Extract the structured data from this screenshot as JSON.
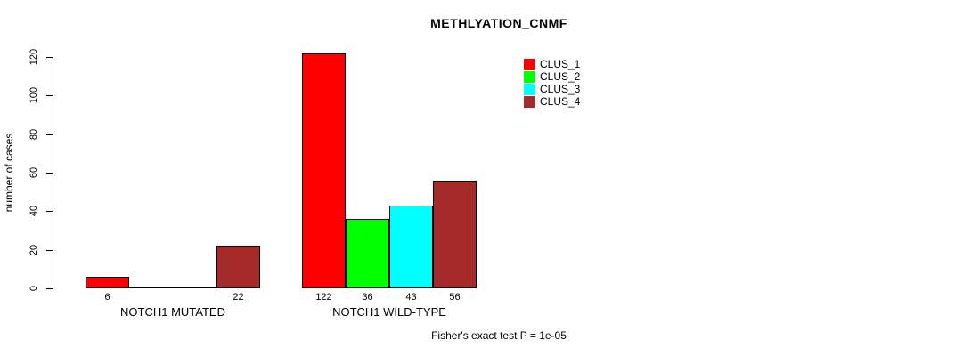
{
  "chart_data": {
    "type": "bar",
    "title": "METHLYATION_CNMF",
    "ylabel": "number of cases",
    "xlabel": "",
    "groups": [
      "NOTCH1 MUTATED",
      "NOTCH1 WILD-TYPE"
    ],
    "series": [
      {
        "name": "CLUS_1",
        "color": "#ff0000",
        "values": [
          6,
          122
        ]
      },
      {
        "name": "CLUS_2",
        "color": "#00ff00",
        "values": [
          0,
          36
        ]
      },
      {
        "name": "CLUS_3",
        "color": "#00ffff",
        "values": [
          0,
          43
        ]
      },
      {
        "name": "CLUS_4",
        "color": "#a52a2a",
        "values": [
          22,
          56
        ]
      }
    ],
    "bar_labels": [
      [
        "6",
        "",
        "",
        "22"
      ],
      [
        "122",
        "36",
        "43",
        "56"
      ]
    ],
    "yticks": [
      0,
      20,
      40,
      60,
      80,
      100,
      120
    ],
    "ylim": [
      0,
      120
    ],
    "grid": false,
    "legend_position": "top-right-inside",
    "footnote": "Fisher's exact test P = 1e-05"
  },
  "colors": {
    "background": "#ffffff",
    "axis": "#000000",
    "text": "#000000"
  }
}
